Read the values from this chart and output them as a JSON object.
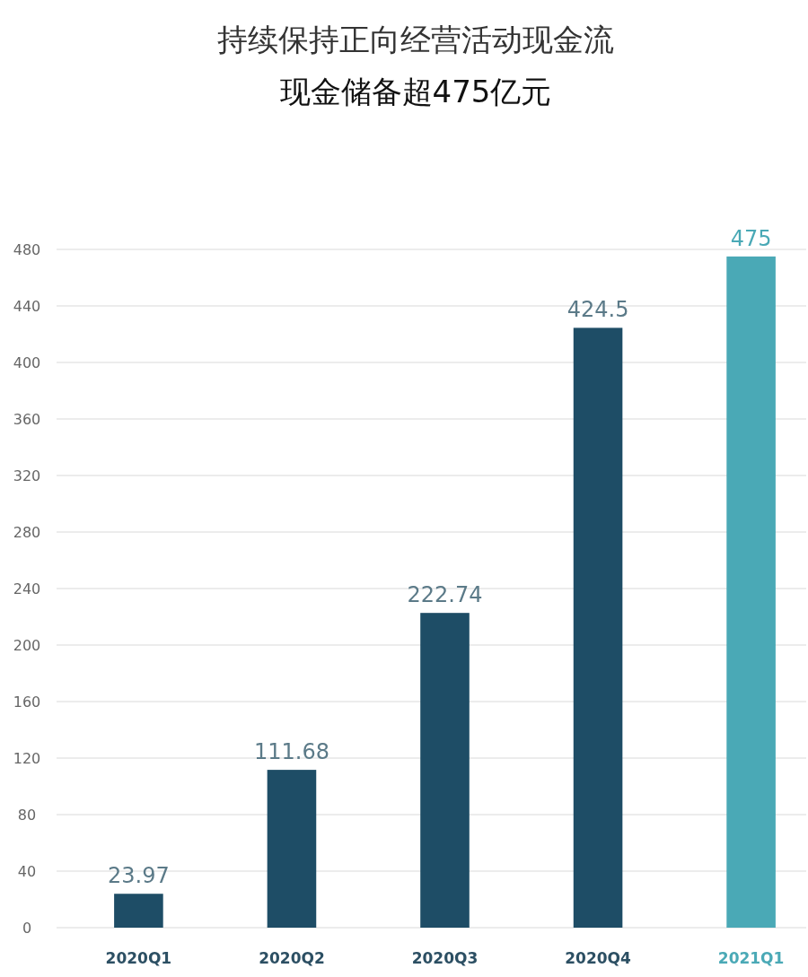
{
  "chart_data": {
    "type": "bar",
    "title": "持续保持正向经营活动现金流",
    "subtitle": "现金储备超475亿元",
    "categories": [
      "2020Q1",
      "2020Q2",
      "2020Q3",
      "2020Q4",
      "2021Q1"
    ],
    "values": [
      23.97,
      111.68,
      222.74,
      424.5,
      475
    ],
    "colors": [
      "#1e4d66",
      "#1e4d66",
      "#1e4d66",
      "#1e4d66",
      "#4aa9b6"
    ],
    "ylim": [
      0,
      480
    ],
    "yticks": [
      0,
      40,
      80,
      120,
      160,
      200,
      240,
      280,
      320,
      360,
      400,
      440,
      480
    ],
    "grid": "y",
    "data_labels": true
  }
}
